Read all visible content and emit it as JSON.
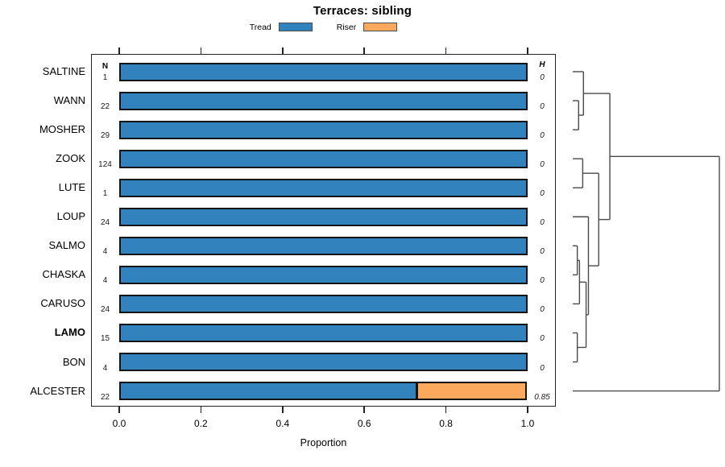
{
  "title": "Terraces: sibling",
  "legend": [
    {
      "label": "Tread",
      "color": "#3182BD"
    },
    {
      "label": "Riser",
      "color": "#FCA95E"
    }
  ],
  "columns": {
    "n_header": "N",
    "h_header": "H"
  },
  "x_axis": {
    "label": "Proportion",
    "tick_labels": [
      "0.0",
      "0.2",
      "0.4",
      "0.6",
      "0.8",
      "1.0"
    ]
  },
  "rows": [
    {
      "name": "SALTINE",
      "n": "1",
      "h": "0",
      "tread": 1.0,
      "riser": 0.0,
      "bold": false
    },
    {
      "name": "WANN",
      "n": "22",
      "h": "0",
      "tread": 1.0,
      "riser": 0.0,
      "bold": false
    },
    {
      "name": "MOSHER",
      "n": "29",
      "h": "0",
      "tread": 1.0,
      "riser": 0.0,
      "bold": false
    },
    {
      "name": "ZOOK",
      "n": "124",
      "h": "0",
      "tread": 1.0,
      "riser": 0.0,
      "bold": false
    },
    {
      "name": "LUTE",
      "n": "1",
      "h": "0",
      "tread": 1.0,
      "riser": 0.0,
      "bold": false
    },
    {
      "name": "LOUP",
      "n": "24",
      "h": "0",
      "tread": 1.0,
      "riser": 0.0,
      "bold": false
    },
    {
      "name": "SALMO",
      "n": "4",
      "h": "0",
      "tread": 1.0,
      "riser": 0.0,
      "bold": false
    },
    {
      "name": "CHASKA",
      "n": "4",
      "h": "0",
      "tread": 1.0,
      "riser": 0.0,
      "bold": false
    },
    {
      "name": "CARUSO",
      "n": "24",
      "h": "0",
      "tread": 1.0,
      "riser": 0.0,
      "bold": false
    },
    {
      "name": "LAMO",
      "n": "15",
      "h": "0",
      "tread": 1.0,
      "riser": 0.0,
      "bold": true
    },
    {
      "name": "BON",
      "n": "4",
      "h": "0",
      "tread": 1.0,
      "riser": 0.0,
      "bold": false
    },
    {
      "name": "ALCESTER",
      "n": "22",
      "h": "0.85",
      "tread": 0.73,
      "riser": 0.27,
      "bold": false
    }
  ],
  "dendrogram": {
    "h": 1.0,
    "children": [
      {
        "h": 0.253,
        "children": [
          {
            "h": 0.073,
            "children": [
              {
                "leaf": "SALTINE"
              },
              {
                "h": 0.04,
                "children": [
                  {
                    "leaf": "WANN"
                  },
                  {
                    "leaf": "MOSHER"
                  }
                ]
              }
            ]
          },
          {
            "h": 0.177,
            "children": [
              {
                "h": 0.068,
                "children": [
                  {
                    "leaf": "ZOOK"
                  },
                  {
                    "leaf": "LUTE"
                  }
                ]
              },
              {
                "h": 0.107,
                "children": [
                  {
                    "leaf": "LOUP"
                  },
                  {
                    "h": 0.091,
                    "children": [
                      {
                        "h": 0.046,
                        "children": [
                          {
                            "h": 0.031,
                            "children": [
                              {
                                "leaf": "SALMO"
                              },
                              {
                                "leaf": "CHASKA"
                              }
                            ]
                          },
                          {
                            "leaf": "CARUSO"
                          }
                        ]
                      },
                      {
                        "h": 0.031,
                        "children": [
                          {
                            "leaf": "LAMO"
                          },
                          {
                            "leaf": "BON"
                          }
                        ]
                      }
                    ]
                  }
                ]
              }
            ]
          }
        ]
      },
      {
        "leaf": "ALCESTER"
      }
    ]
  },
  "chart_data": {
    "type": "bar",
    "orientation": "horizontal-stacked",
    "title": "Terraces: sibling",
    "xlabel": "Proportion",
    "xlim": [
      0,
      1
    ],
    "x_ticks": [
      0.0,
      0.2,
      0.4,
      0.6,
      0.8,
      1.0
    ],
    "categories": [
      "SALTINE",
      "WANN",
      "MOSHER",
      "ZOOK",
      "LUTE",
      "LOUP",
      "SALMO",
      "CHASKA",
      "CARUSO",
      "LAMO",
      "BON",
      "ALCESTER"
    ],
    "series": [
      {
        "name": "Tread",
        "color": "#3182BD",
        "values": [
          1,
          1,
          1,
          1,
          1,
          1,
          1,
          1,
          1,
          1,
          1,
          0.73
        ]
      },
      {
        "name": "Riser",
        "color": "#FCA95E",
        "values": [
          0,
          0,
          0,
          0,
          0,
          0,
          0,
          0,
          0,
          0,
          0,
          0.27
        ]
      }
    ],
    "n_counts": [
      1,
      22,
      29,
      124,
      1,
      24,
      4,
      4,
      24,
      15,
      4,
      22
    ],
    "h_values": [
      0,
      0,
      0,
      0,
      0,
      0,
      0,
      0,
      0,
      0,
      0,
      0.85
    ],
    "legend_position": "top",
    "grid": false,
    "highlighted_category": "LAMO",
    "dendrogram_attached": "right"
  }
}
